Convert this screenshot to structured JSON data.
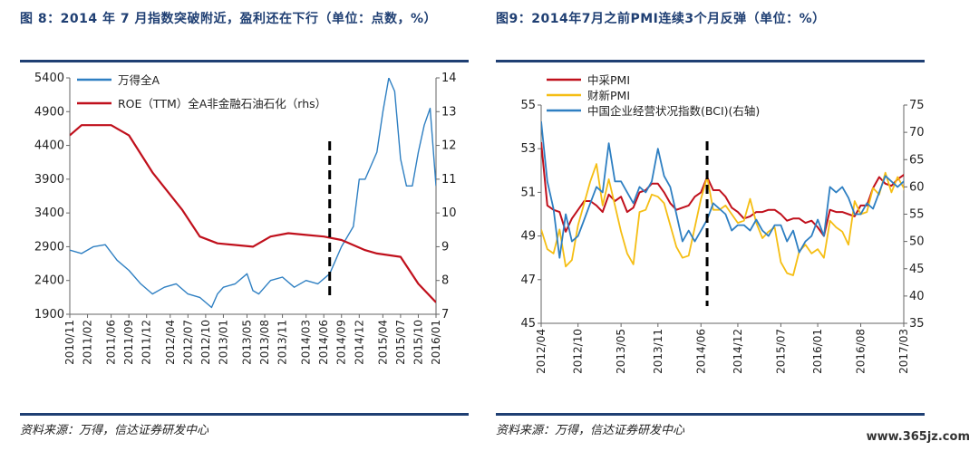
{
  "panels": [
    {
      "title": "图 8：2014 年 7 月指数突破附近，盈利还在下行（单位：点数，%）",
      "source": "资料来源：万得，信达证券研发中心"
    },
    {
      "title": "图9：2014年7月之前PMI连续3个月反弹（单位：%）",
      "source": "资料来源：万得，信达证券研发中心"
    }
  ],
  "watermark": "www.365jz.com",
  "chart_data": [
    {
      "type": "line",
      "legend_position": "top-left",
      "ylim_left": [
        1900,
        5400
      ],
      "yticks_left": [
        "1900",
        "2400",
        "2900",
        "3400",
        "3900",
        "4400",
        "4900",
        "5400"
      ],
      "ylim_right": [
        7,
        14
      ],
      "yticks_right": [
        "7",
        "8",
        "9",
        "10",
        "11",
        "12",
        "13",
        "14"
      ],
      "x_ticks": [
        "2010/11",
        "2011/02",
        "2011/06",
        "2011/09",
        "2011/12",
        "2012/04",
        "2012/07",
        "2012/10",
        "2013/01",
        "2013/05",
        "2013/08",
        "2013/11",
        "2014/03",
        "2014/06",
        "2014/09",
        "2014/12",
        "2015/04",
        "2015/07",
        "2015/10",
        "2016/01"
      ],
      "marker_x": "2014/07",
      "series": [
        {
          "name": "万得全A",
          "axis": "left",
          "color": "#2e7fc2",
          "x": [
            "2010/11",
            "2011/01",
            "2011/03",
            "2011/05",
            "2011/07",
            "2011/09",
            "2011/11",
            "2012/01",
            "2012/03",
            "2012/05",
            "2012/07",
            "2012/09",
            "2012/11",
            "2012/12",
            "2013/01",
            "2013/03",
            "2013/05",
            "2013/06",
            "2013/07",
            "2013/09",
            "2013/11",
            "2014/01",
            "2014/03",
            "2014/05",
            "2014/07",
            "2014/09",
            "2014/11",
            "2014/12",
            "2015/01",
            "2015/03",
            "2015/04",
            "2015/05",
            "2015/06",
            "2015/07",
            "2015/08",
            "2015/09",
            "2015/10",
            "2015/11",
            "2015/12",
            "2016/01"
          ],
          "values": [
            2850,
            2800,
            2900,
            2930,
            2700,
            2550,
            2350,
            2200,
            2300,
            2350,
            2200,
            2150,
            2000,
            2200,
            2300,
            2350,
            2500,
            2250,
            2200,
            2400,
            2450,
            2300,
            2400,
            2350,
            2500,
            2900,
            3200,
            3900,
            3900,
            4300,
            4900,
            5400,
            5200,
            4200,
            3800,
            3800,
            4300,
            4700,
            4950,
            3800
          ]
        },
        {
          "name": "ROE（TTM）全A非金融石油石化（rhs）",
          "axis": "right",
          "color": "#c0101c",
          "x": [
            "2010/11",
            "2011/01",
            "2011/06",
            "2011/09",
            "2012/01",
            "2012/06",
            "2012/09",
            "2012/12",
            "2013/06",
            "2013/09",
            "2013/12",
            "2014/03",
            "2014/06",
            "2014/09",
            "2015/01",
            "2015/03",
            "2015/07",
            "2015/10",
            "2016/01"
          ],
          "values": [
            12.3,
            12.6,
            12.6,
            12.3,
            11.2,
            10.1,
            9.3,
            9.1,
            9.0,
            9.3,
            9.4,
            9.35,
            9.3,
            9.2,
            8.9,
            8.8,
            8.7,
            7.9,
            7.35
          ]
        }
      ]
    },
    {
      "type": "line",
      "legend_position": "top-left",
      "ylim_left": [
        45,
        55
      ],
      "yticks_left": [
        "45",
        "47",
        "49",
        "51",
        "53",
        "55"
      ],
      "ylim_right": [
        35,
        75
      ],
      "yticks_right": [
        "35",
        "40",
        "45",
        "50",
        "55",
        "60",
        "65",
        "70",
        "75"
      ],
      "x_ticks": [
        "2012/04",
        "2012/10",
        "2013/05",
        "2013/11",
        "2014/06",
        "2014/12",
        "2015/07",
        "2016/01",
        "2016/08",
        "2017/03"
      ],
      "marker_x": "2014/07",
      "series": [
        {
          "name": "中采PMI",
          "axis": "left",
          "color": "#c0101c",
          "x": [
            "2012/04",
            "2012/05",
            "2012/06",
            "2012/07",
            "2012/08",
            "2012/09",
            "2012/10",
            "2012/11",
            "2012/12",
            "2013/01",
            "2013/02",
            "2013/03",
            "2013/04",
            "2013/05",
            "2013/06",
            "2013/07",
            "2013/08",
            "2013/09",
            "2013/10",
            "2013/11",
            "2013/12",
            "2014/01",
            "2014/02",
            "2014/03",
            "2014/04",
            "2014/05",
            "2014/06",
            "2014/07",
            "2014/08",
            "2014/09",
            "2014/10",
            "2014/11",
            "2014/12",
            "2015/01",
            "2015/02",
            "2015/03",
            "2015/04",
            "2015/05",
            "2015/06",
            "2015/07",
            "2015/08",
            "2015/09",
            "2015/10",
            "2015/11",
            "2015/12",
            "2016/01",
            "2016/02",
            "2016/03",
            "2016/04",
            "2016/05",
            "2016/06",
            "2016/07",
            "2016/08",
            "2016/09",
            "2016/10",
            "2016/11",
            "2016/12",
            "2017/01",
            "2017/02",
            "2017/03",
            "2017/04"
          ],
          "values": [
            53.3,
            50.4,
            50.2,
            50.1,
            49.2,
            49.8,
            50.2,
            50.6,
            50.6,
            50.4,
            50.1,
            50.9,
            50.6,
            50.8,
            50.1,
            50.3,
            51.0,
            51.1,
            51.4,
            51.4,
            51.0,
            50.5,
            50.2,
            50.3,
            50.4,
            50.8,
            51.0,
            51.7,
            51.1,
            51.1,
            50.8,
            50.3,
            50.1,
            49.8,
            49.9,
            50.1,
            50.1,
            50.2,
            50.2,
            50.0,
            49.7,
            49.8,
            49.8,
            49.6,
            49.7,
            49.4,
            49.0,
            50.2,
            50.1,
            50.1,
            50.0,
            49.9,
            50.4,
            50.4,
            51.2,
            51.7,
            51.4,
            51.3,
            51.6,
            51.8,
            51.2
          ]
        },
        {
          "name": "财新PMI",
          "axis": "left",
          "color": "#f5be14",
          "x": [
            "2012/04",
            "2012/05",
            "2012/06",
            "2012/07",
            "2012/08",
            "2012/09",
            "2012/10",
            "2012/11",
            "2012/12",
            "2013/01",
            "2013/02",
            "2013/03",
            "2013/04",
            "2013/05",
            "2013/06",
            "2013/07",
            "2013/08",
            "2013/09",
            "2013/10",
            "2013/11",
            "2013/12",
            "2014/01",
            "2014/02",
            "2014/03",
            "2014/04",
            "2014/05",
            "2014/06",
            "2014/07",
            "2014/08",
            "2014/09",
            "2014/10",
            "2014/11",
            "2014/12",
            "2015/01",
            "2015/02",
            "2015/03",
            "2015/04",
            "2015/05",
            "2015/06",
            "2015/07",
            "2015/08",
            "2015/09",
            "2015/10",
            "2015/11",
            "2015/12",
            "2016/01",
            "2016/02",
            "2016/03",
            "2016/04",
            "2016/05",
            "2016/06",
            "2016/07",
            "2016/08",
            "2016/09",
            "2016/10",
            "2016/11",
            "2016/12",
            "2017/01",
            "2017/02",
            "2017/03",
            "2017/04"
          ],
          "values": [
            49.3,
            48.4,
            48.2,
            49.3,
            47.6,
            47.9,
            49.5,
            50.5,
            51.5,
            52.3,
            50.4,
            51.6,
            50.4,
            49.2,
            48.2,
            47.7,
            50.1,
            50.2,
            50.9,
            50.8,
            50.5,
            49.5,
            48.5,
            48.0,
            48.1,
            49.4,
            50.7,
            51.7,
            50.2,
            50.2,
            50.4,
            50.0,
            49.6,
            49.7,
            50.7,
            49.6,
            48.9,
            49.2,
            49.4,
            47.8,
            47.3,
            47.2,
            48.3,
            48.6,
            48.2,
            48.4,
            48.0,
            49.7,
            49.4,
            49.2,
            48.6,
            50.6,
            50.0,
            50.1,
            51.2,
            50.9,
            51.9,
            51.0,
            51.7,
            51.2,
            50.3
          ]
        },
        {
          "name": "中国企业经营状况指数(BCI)(右轴)",
          "axis": "right",
          "color": "#2e7fc2",
          "x": [
            "2012/04",
            "2012/05",
            "2012/06",
            "2012/07",
            "2012/08",
            "2012/09",
            "2012/10",
            "2012/11",
            "2012/12",
            "2013/01",
            "2013/02",
            "2013/03",
            "2013/04",
            "2013/05",
            "2013/06",
            "2013/07",
            "2013/08",
            "2013/09",
            "2013/10",
            "2013/11",
            "2013/12",
            "2014/01",
            "2014/02",
            "2014/03",
            "2014/04",
            "2014/05",
            "2014/06",
            "2014/07",
            "2014/08",
            "2014/09",
            "2014/10",
            "2014/11",
            "2014/12",
            "2015/01",
            "2015/02",
            "2015/03",
            "2015/04",
            "2015/05",
            "2015/06",
            "2015/07",
            "2015/08",
            "2015/09",
            "2015/10",
            "2015/11",
            "2015/12",
            "2016/01",
            "2016/02",
            "2016/03",
            "2016/04",
            "2016/05",
            "2016/06",
            "2016/07",
            "2016/08",
            "2016/09",
            "2016/10",
            "2016/11",
            "2016/12",
            "2017/01",
            "2017/02",
            "2017/03",
            "2017/04"
          ],
          "values": [
            72,
            61,
            56,
            47,
            55,
            50,
            51,
            54,
            57,
            60,
            59,
            68,
            61,
            61,
            59,
            57,
            60,
            59,
            61,
            67,
            62,
            60,
            55,
            50,
            52,
            50,
            52,
            54,
            57,
            56,
            55,
            52,
            53,
            53,
            52,
            54,
            52,
            51,
            53,
            53,
            50,
            52,
            48,
            50,
            51,
            54,
            51,
            60,
            59,
            60,
            58,
            55,
            55,
            57,
            56,
            59,
            62,
            61,
            60,
            61,
            63
          ]
        }
      ]
    }
  ]
}
